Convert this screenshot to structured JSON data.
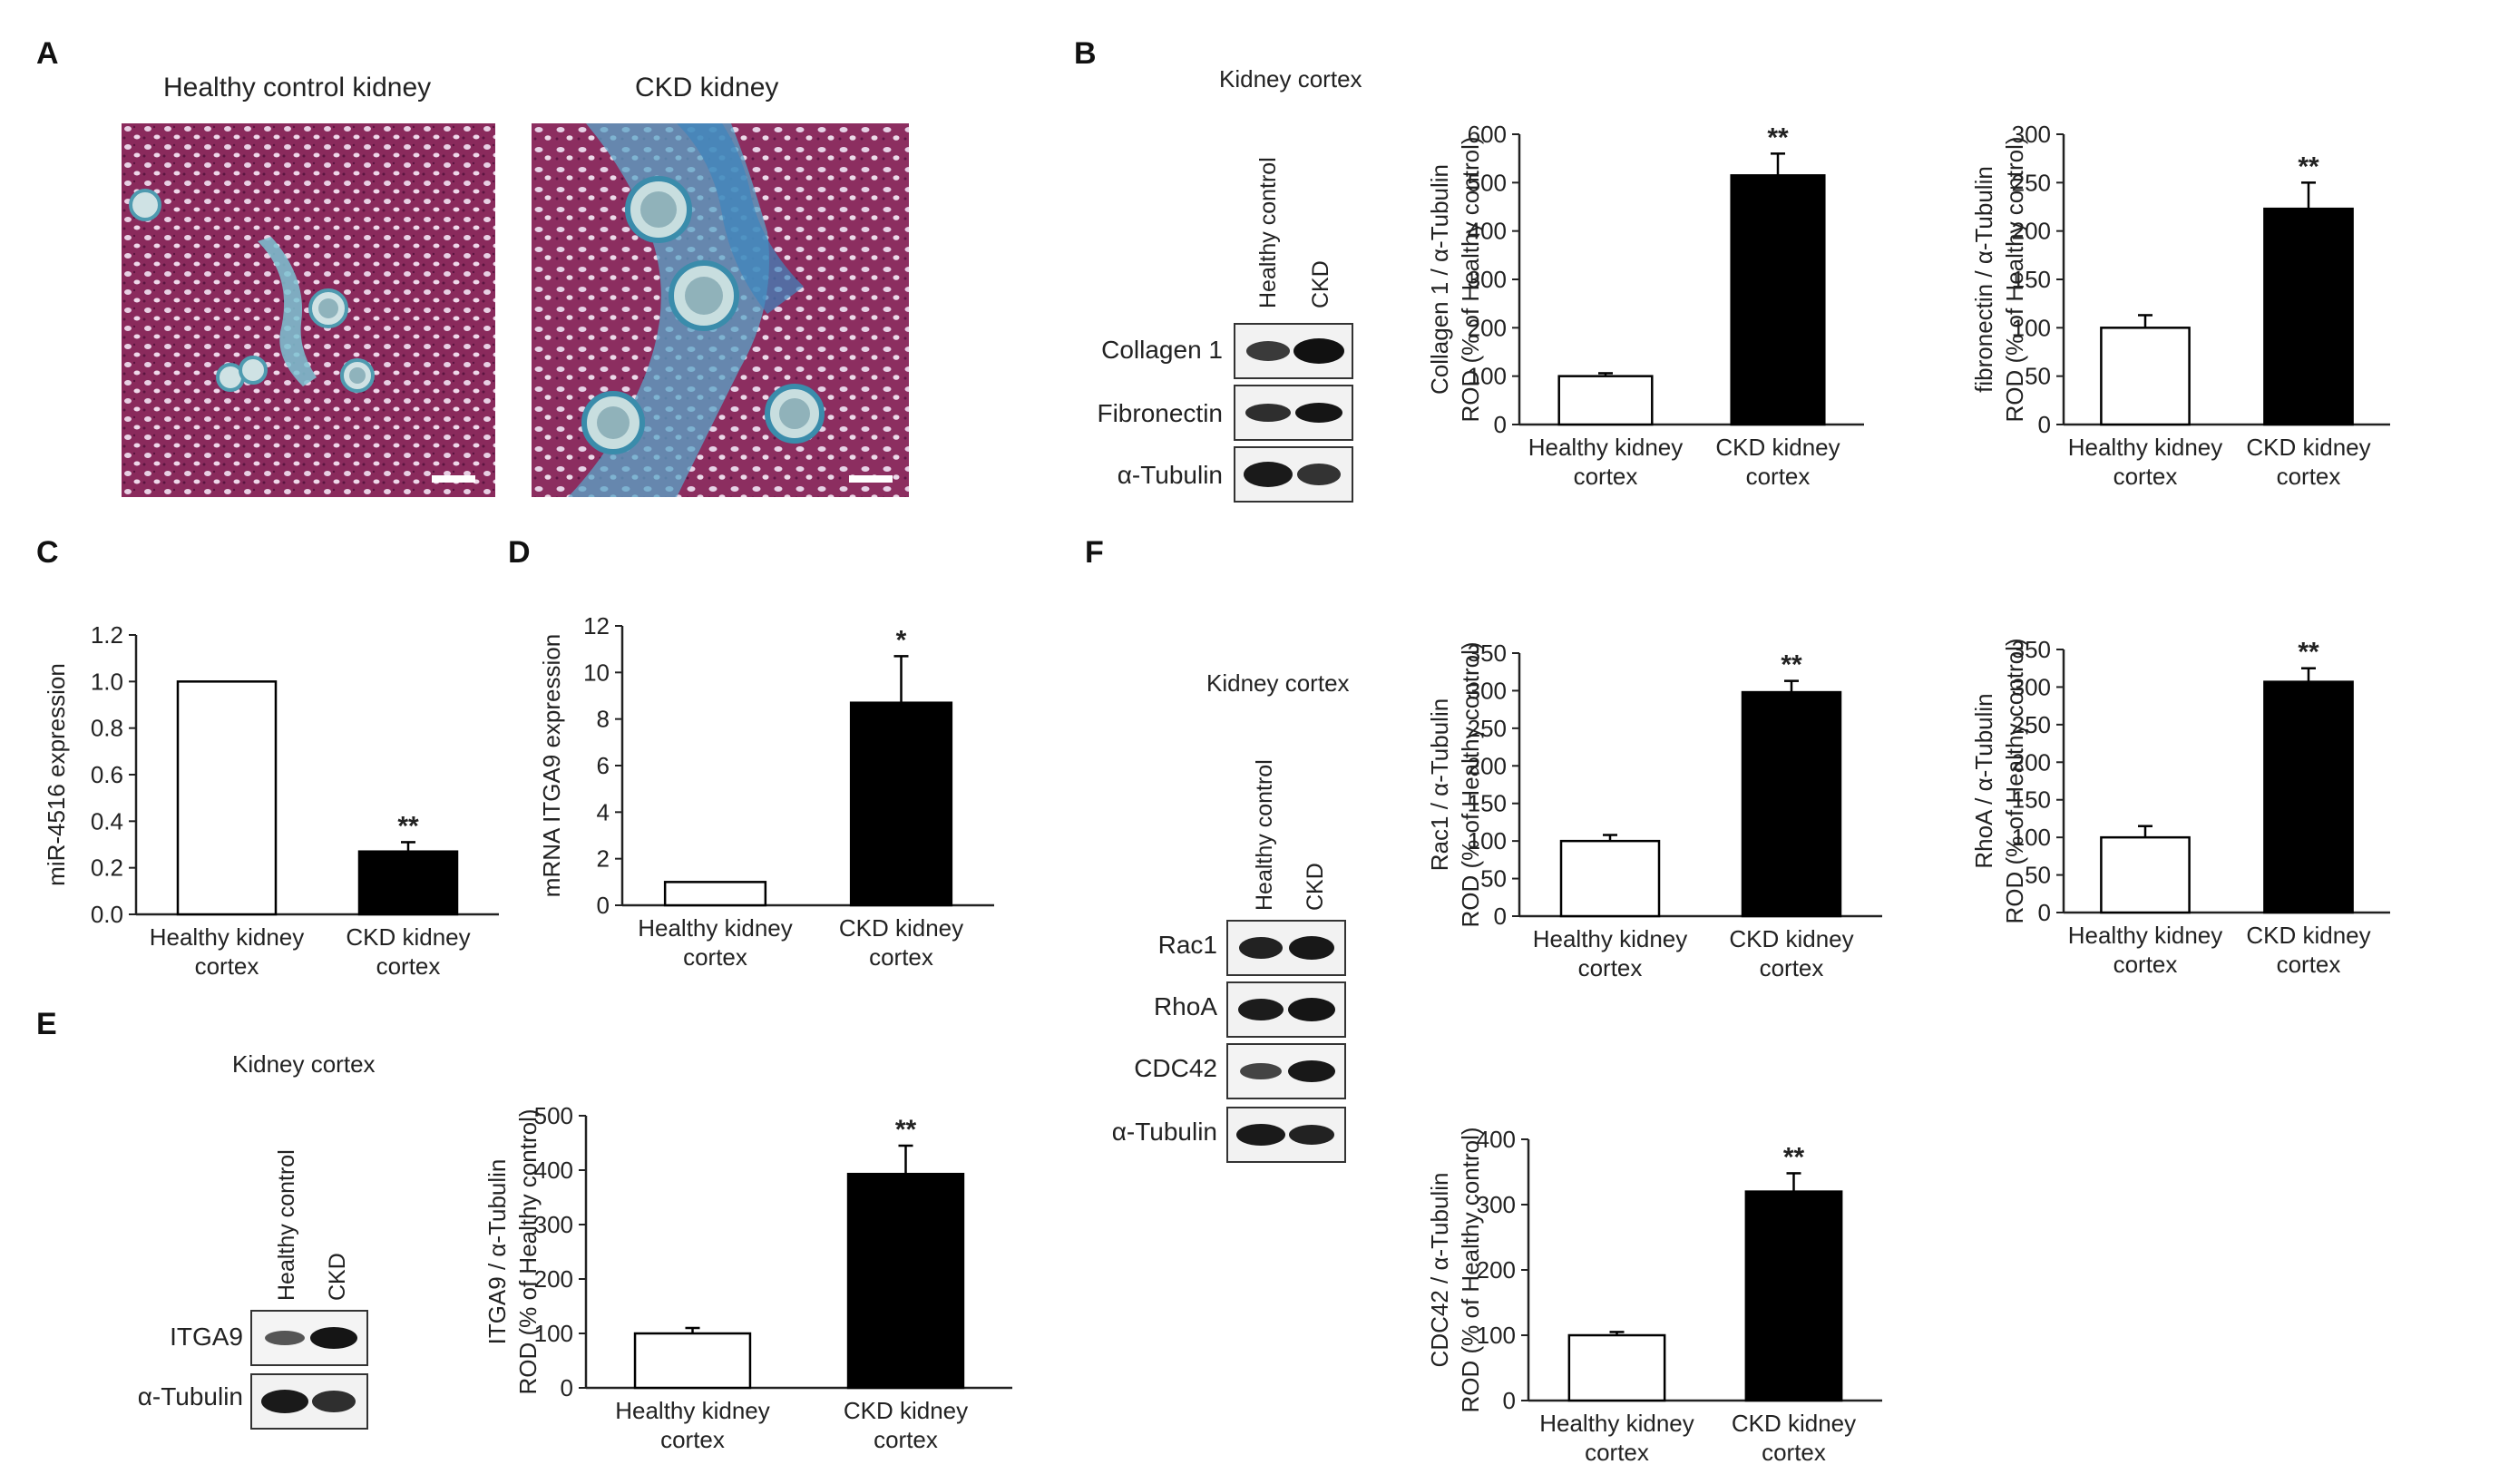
{
  "panels": {
    "A": {
      "letter": "A",
      "left_title": "Healthy control kidney",
      "right_title": "CKD kidney"
    },
    "B": {
      "letter": "B",
      "blot_title": "Kidney cortex",
      "lanes": [
        "Healthy control",
        "CKD"
      ],
      "rows": [
        "Collagen 1",
        "Fibronectin",
        "α-Tubulin"
      ]
    },
    "C": {
      "letter": "C"
    },
    "D": {
      "letter": "D"
    },
    "E": {
      "letter": "E",
      "blot_title": "Kidney cortex",
      "lanes": [
        "Healthy control",
        "CKD"
      ],
      "rows": [
        "ITGA9",
        "α-Tubulin"
      ]
    },
    "F": {
      "letter": "F",
      "blot_title": "Kidney cortex",
      "lanes": [
        "Healthy control",
        "CKD"
      ],
      "rows": [
        "Rac1",
        "RhoA",
        "CDC42",
        "α-Tubulin"
      ]
    }
  },
  "chart_data": [
    {
      "id": "collagen",
      "type": "bar",
      "categories": [
        [
          "Healthy kidney",
          "cortex"
        ],
        [
          "CKD kidney",
          "cortex"
        ]
      ],
      "values": [
        100,
        515
      ],
      "errors": [
        6,
        45
      ],
      "significance": [
        "",
        "**"
      ],
      "ylabel": [
        "Collagen 1 / α-Tubulin",
        "ROD (% of Healthy control)"
      ],
      "ylim": [
        0,
        600
      ],
      "yticks": [
        "0",
        "100",
        "200",
        "300",
        "400",
        "500",
        "600"
      ],
      "fills": [
        "#ffffff",
        "#000000"
      ]
    },
    {
      "id": "fibronectin",
      "type": "bar",
      "categories": [
        [
          "Healthy kidney",
          "cortex"
        ],
        [
          "CKD kidney",
          "cortex"
        ]
      ],
      "values": [
        100,
        223
      ],
      "errors": [
        13,
        27
      ],
      "significance": [
        "",
        "**"
      ],
      "ylabel": [
        "fibronectin / α-Tubulin",
        "ROD (% of Healthy control)"
      ],
      "ylim": [
        0,
        300
      ],
      "yticks": [
        "0",
        "50",
        "100",
        "150",
        "200",
        "250",
        "300"
      ],
      "fills": [
        "#ffffff",
        "#000000"
      ]
    },
    {
      "id": "mir4516",
      "type": "bar",
      "categories": [
        [
          "Healthy kidney",
          "cortex"
        ],
        [
          "CKD kidney",
          "cortex"
        ]
      ],
      "values": [
        1.0,
        0.27
      ],
      "errors": [
        0,
        0.04
      ],
      "significance": [
        "",
        "**"
      ],
      "ylabel": [
        "miR-4516 expression"
      ],
      "ylim": [
        0,
        1.2
      ],
      "yticks": [
        "0.0",
        "0.2",
        "0.4",
        "0.6",
        "0.8",
        "1.0",
        "1.2"
      ],
      "fills": [
        "#ffffff",
        "#000000"
      ]
    },
    {
      "id": "itga9-mrna",
      "type": "bar",
      "categories": [
        [
          "Healthy kidney",
          "cortex"
        ],
        [
          "CKD kidney",
          "cortex"
        ]
      ],
      "values": [
        1.0,
        8.7
      ],
      "errors": [
        0,
        2.0
      ],
      "significance": [
        "",
        "*"
      ],
      "ylabel": [
        "mRNA ITGA9 expression"
      ],
      "ylim": [
        0,
        12
      ],
      "yticks": [
        "0",
        "2",
        "4",
        "6",
        "8",
        "10",
        "12"
      ],
      "fills": [
        "#ffffff",
        "#000000"
      ]
    },
    {
      "id": "itga9-protein",
      "type": "bar",
      "categories": [
        [
          "Healthy kidney",
          "cortex"
        ],
        [
          "CKD kidney",
          "cortex"
        ]
      ],
      "values": [
        100,
        393
      ],
      "errors": [
        10,
        52
      ],
      "significance": [
        "",
        "**"
      ],
      "ylabel": [
        "ITGA9 / α-Tubulin",
        "ROD (% of Healthy control)"
      ],
      "ylim": [
        0,
        500
      ],
      "yticks": [
        "0",
        "100",
        "200",
        "300",
        "400",
        "500"
      ],
      "fills": [
        "#ffffff",
        "#000000"
      ]
    },
    {
      "id": "rac1",
      "type": "bar",
      "categories": [
        [
          "Healthy kidney",
          "cortex"
        ],
        [
          "CKD kidney",
          "cortex"
        ]
      ],
      "values": [
        100,
        298
      ],
      "errors": [
        8,
        15
      ],
      "significance": [
        "",
        "**"
      ],
      "ylabel": [
        "Rac1 / α-Tubulin",
        "ROD (% of Healthy control)"
      ],
      "ylim": [
        0,
        350
      ],
      "yticks": [
        "0",
        "50",
        "100",
        "150",
        "200",
        "250",
        "300",
        "350"
      ],
      "fills": [
        "#ffffff",
        "#000000"
      ]
    },
    {
      "id": "rhoa",
      "type": "bar",
      "categories": [
        [
          "Healthy kidney",
          "cortex"
        ],
        [
          "CKD kidney",
          "cortex"
        ]
      ],
      "values": [
        100,
        307
      ],
      "errors": [
        15,
        18
      ],
      "significance": [
        "",
        "**"
      ],
      "ylabel": [
        "RhoA / α-Tubulin",
        "ROD (% of Healthy control)"
      ],
      "ylim": [
        0,
        350
      ],
      "yticks": [
        "0",
        "50",
        "100",
        "150",
        "200",
        "250",
        "300",
        "350"
      ],
      "fills": [
        "#ffffff",
        "#000000"
      ]
    },
    {
      "id": "cdc42",
      "type": "bar",
      "categories": [
        [
          "Healthy kidney",
          "cortex"
        ],
        [
          "CKD kidney",
          "cortex"
        ]
      ],
      "values": [
        100,
        320
      ],
      "errors": [
        5,
        28
      ],
      "significance": [
        "",
        "**"
      ],
      "ylabel": [
        "CDC42 / α-Tubulin",
        "ROD (% of Healthy control)"
      ],
      "ylim": [
        0,
        400
      ],
      "yticks": [
        "0",
        "100",
        "200",
        "300",
        "400"
      ],
      "fills": [
        "#ffffff",
        "#000000"
      ]
    }
  ]
}
